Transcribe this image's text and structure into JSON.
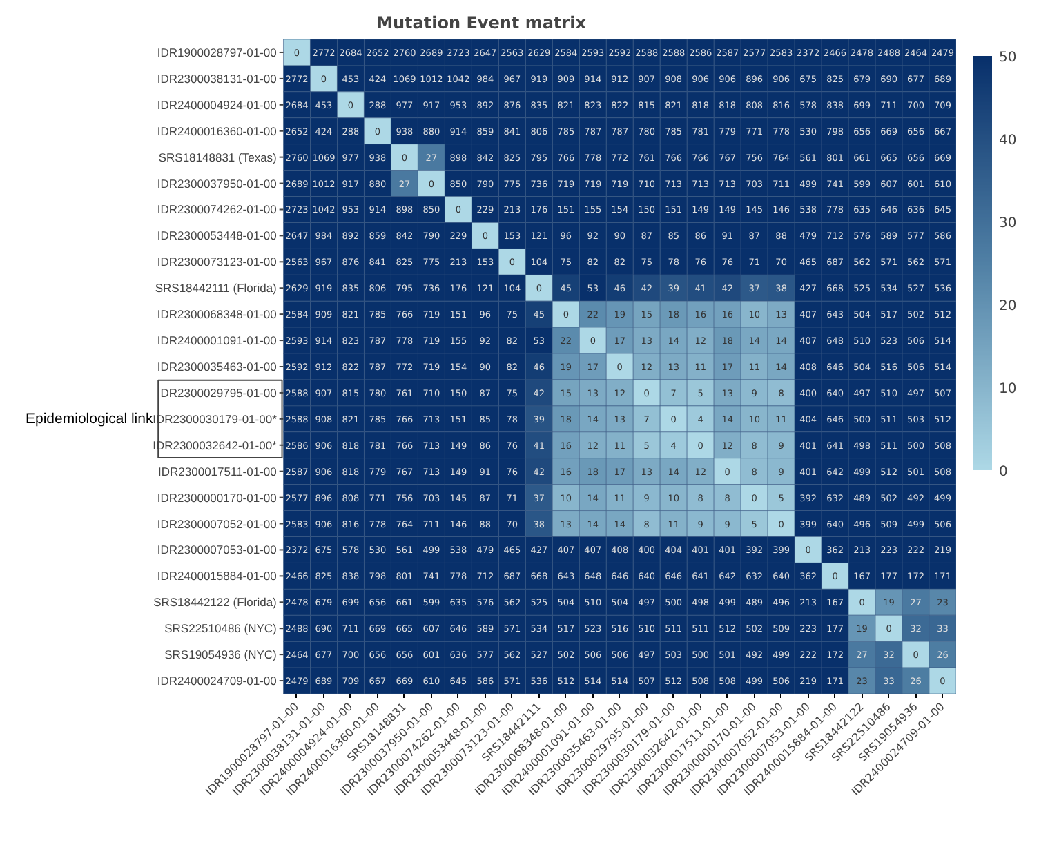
{
  "chart_data": {
    "type": "heatmap",
    "title": "Mutation Event matrix",
    "categories": [
      "IDR1900028797-01-00",
      "IDR2300038131-01-00",
      "IDR2400004924-01-00",
      "IDR2400016360-01-00",
      "SRS18148831",
      "IDR2300037950-01-00",
      "IDR2300074262-01-00",
      "IDR2300053448-01-00",
      "IDR2300073123-01-00",
      "SRS18442111",
      "IDR2300068348-01-00",
      "IDR2400001091-01-00",
      "IDR2300035463-01-00",
      "IDR2300029795-01-00",
      "IDR2300030179-01-00",
      "IDR2300032642-01-00",
      "IDR2300017511-01-00",
      "IDR2300000170-01-00",
      "IDR2300007052-01-00",
      "IDR2300007053-01-00",
      "IDR2400015884-01-00",
      "SRS18442122",
      "SRS22510486",
      "SRS19054936",
      "IDR2400024709-01-00"
    ],
    "y_categories": [
      "IDR1900028797-01-00",
      "IDR2300038131-01-00",
      "IDR2400004924-01-00",
      "IDR2400016360-01-00",
      "SRS18148831 (Texas)",
      "IDR2300037950-01-00",
      "IDR2300074262-01-00",
      "IDR2300053448-01-00",
      "IDR2300073123-01-00",
      "SRS18442111 (Florida)",
      "IDR2300068348-01-00",
      "IDR2400001091-01-00",
      "IDR2300035463-01-00",
      "IDR2300029795-01-00",
      "IDR2300030179-01-00*",
      "IDR2300032642-01-00*",
      "IDR2300017511-01-00",
      "IDR2300000170-01-00",
      "IDR2300007052-01-00",
      "IDR2300007053-01-00",
      "IDR2400015884-01-00",
      "SRS18442122 (Florida)",
      "SRS22510486 (NYC)",
      "SRS19054936 (NYC)",
      "IDR2400024709-01-00"
    ],
    "cells": [
      [
        0,
        2772,
        2684,
        2652,
        2760,
        2689,
        2723,
        2647,
        2563,
        2629,
        2584,
        2593,
        2592,
        2588,
        2588,
        2586,
        2587,
        2577,
        2583,
        2372,
        2466,
        2478,
        2488,
        2464,
        2479
      ],
      [
        2772,
        0,
        453,
        424,
        1069,
        1012,
        1042,
        984,
        967,
        919,
        909,
        914,
        912,
        907,
        908,
        906,
        906,
        896,
        906,
        675,
        825,
        679,
        690,
        677,
        689
      ],
      [
        2684,
        453,
        0,
        288,
        977,
        917,
        953,
        892,
        876,
        835,
        821,
        823,
        822,
        815,
        821,
        818,
        818,
        808,
        816,
        578,
        838,
        699,
        711,
        700,
        709
      ],
      [
        2652,
        424,
        288,
        0,
        938,
        880,
        914,
        859,
        841,
        806,
        785,
        787,
        787,
        780,
        785,
        781,
        779,
        771,
        778,
        530,
        798,
        656,
        669,
        656,
        667
      ],
      [
        2760,
        1069,
        977,
        938,
        0,
        27,
        898,
        842,
        825,
        795,
        766,
        778,
        772,
        761,
        766,
        766,
        767,
        756,
        764,
        561,
        801,
        661,
        665,
        656,
        669
      ],
      [
        2689,
        1012,
        917,
        880,
        27,
        0,
        850,
        790,
        775,
        736,
        719,
        719,
        719,
        710,
        713,
        713,
        713,
        703,
        711,
        499,
        741,
        599,
        607,
        601,
        610
      ],
      [
        2723,
        1042,
        953,
        914,
        898,
        850,
        0,
        229,
        213,
        176,
        151,
        155,
        154,
        150,
        151,
        149,
        149,
        145,
        146,
        538,
        778,
        635,
        646,
        636,
        645
      ],
      [
        2647,
        984,
        892,
        859,
        842,
        790,
        229,
        0,
        153,
        121,
        96,
        92,
        90,
        87,
        85,
        86,
        91,
        87,
        88,
        479,
        712,
        576,
        589,
        577,
        586
      ],
      [
        2563,
        967,
        876,
        841,
        825,
        775,
        213,
        153,
        0,
        104,
        75,
        82,
        82,
        75,
        78,
        76,
        76,
        71,
        70,
        465,
        687,
        562,
        571,
        562,
        571
      ],
      [
        2629,
        919,
        835,
        806,
        795,
        736,
        176,
        121,
        104,
        0,
        45,
        53,
        46,
        42,
        39,
        41,
        42,
        37,
        38,
        427,
        668,
        525,
        534,
        527,
        536
      ],
      [
        2584,
        909,
        821,
        785,
        766,
        719,
        151,
        96,
        75,
        45,
        0,
        22,
        19,
        15,
        18,
        16,
        16,
        10,
        13,
        407,
        643,
        504,
        517,
        502,
        512
      ],
      [
        2593,
        914,
        823,
        787,
        778,
        719,
        155,
        92,
        82,
        53,
        22,
        0,
        17,
        13,
        14,
        12,
        18,
        14,
        14,
        407,
        648,
        510,
        523,
        506,
        514
      ],
      [
        2592,
        912,
        822,
        787,
        772,
        719,
        154,
        90,
        82,
        46,
        19,
        17,
        0,
        12,
        13,
        11,
        17,
        11,
        14,
        408,
        646,
        504,
        516,
        506,
        514
      ],
      [
        2588,
        907,
        815,
        780,
        761,
        710,
        150,
        87,
        75,
        42,
        15,
        13,
        12,
        0,
        7,
        5,
        13,
        9,
        8,
        400,
        640,
        497,
        510,
        497,
        507
      ],
      [
        2588,
        908,
        821,
        785,
        766,
        713,
        151,
        85,
        78,
        39,
        18,
        14,
        13,
        7,
        0,
        4,
        14,
        10,
        11,
        404,
        646,
        500,
        511,
        503,
        512
      ],
      [
        2586,
        906,
        818,
        781,
        766,
        713,
        149,
        86,
        76,
        41,
        16,
        12,
        11,
        5,
        4,
        0,
        12,
        8,
        9,
        401,
        641,
        498,
        511,
        500,
        508
      ],
      [
        2587,
        906,
        818,
        779,
        767,
        713,
        149,
        91,
        76,
        42,
        16,
        18,
        17,
        13,
        14,
        12,
        0,
        8,
        9,
        401,
        642,
        499,
        512,
        501,
        508
      ],
      [
        2577,
        896,
        808,
        771,
        756,
        703,
        145,
        87,
        71,
        37,
        10,
        14,
        11,
        9,
        10,
        8,
        8,
        0,
        5,
        392,
        632,
        489,
        502,
        492,
        499
      ],
      [
        2583,
        906,
        816,
        778,
        764,
        711,
        146,
        88,
        70,
        38,
        13,
        14,
        14,
        8,
        11,
        9,
        9,
        5,
        0,
        399,
        640,
        496,
        509,
        499,
        506
      ],
      [
        2372,
        675,
        578,
        530,
        561,
        499,
        538,
        479,
        465,
        427,
        407,
        407,
        408,
        400,
        404,
        401,
        401,
        392,
        399,
        0,
        362,
        213,
        223,
        222,
        219
      ],
      [
        2466,
        825,
        838,
        798,
        801,
        741,
        778,
        712,
        687,
        668,
        643,
        648,
        646,
        640,
        646,
        641,
        642,
        632,
        640,
        362,
        0,
        167,
        177,
        172,
        171
      ],
      [
        2478,
        679,
        699,
        656,
        661,
        599,
        635,
        576,
        562,
        525,
        504,
        510,
        504,
        497,
        500,
        498,
        499,
        489,
        496,
        213,
        167,
        0,
        19,
        27,
        23
      ],
      [
        2488,
        690,
        711,
        669,
        665,
        607,
        646,
        589,
        571,
        534,
        517,
        523,
        516,
        510,
        511,
        511,
        512,
        502,
        509,
        223,
        177,
        19,
        0,
        32,
        33
      ],
      [
        2464,
        677,
        700,
        656,
        656,
        601,
        636,
        577,
        562,
        527,
        502,
        506,
        506,
        497,
        503,
        500,
        501,
        492,
        499,
        222,
        172,
        27,
        32,
        0,
        26
      ],
      [
        2479,
        689,
        709,
        667,
        669,
        610,
        645,
        586,
        571,
        536,
        512,
        514,
        514,
        507,
        512,
        508,
        508,
        499,
        506,
        219,
        171,
        23,
        33,
        26,
        0
      ]
    ],
    "clim": [
      0,
      50
    ],
    "cticks": [
      0,
      10,
      20,
      30,
      40,
      50
    ],
    "data_labels": true,
    "annotations": [
      "Epidemiological link"
    ]
  }
}
